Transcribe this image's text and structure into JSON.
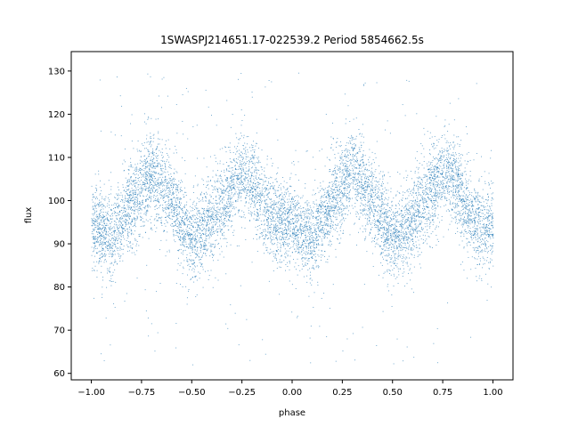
{
  "chart_data": {
    "type": "scatter",
    "title": "1SWASPJ214651.17-022539.2 Period 5854662.5s",
    "xlabel": "phase",
    "ylabel": "flux",
    "xlim": [
      -1.1,
      1.1
    ],
    "ylim": [
      58.5,
      134.5
    ],
    "xticks": [
      -1.0,
      -0.75,
      -0.5,
      -0.25,
      0.0,
      0.25,
      0.5,
      0.75,
      1.0
    ],
    "xtick_labels": [
      "−1.00",
      "−0.75",
      "−0.50",
      "−0.25",
      "0.00",
      "0.25",
      "0.50",
      "0.75",
      "1.00"
    ],
    "yticks": [
      60,
      70,
      80,
      90,
      100,
      110,
      120,
      130
    ],
    "ytick_labels": [
      "60",
      "70",
      "80",
      "90",
      "100",
      "110",
      "120",
      "130"
    ],
    "grid": false,
    "marker_color": "#1f77b4",
    "series": [
      {
        "phase_curve": [
          [
            0.0,
            95
          ],
          [
            0.05,
            93
          ],
          [
            0.1,
            91
          ],
          [
            0.15,
            96
          ],
          [
            0.2,
            100
          ],
          [
            0.25,
            103
          ],
          [
            0.3,
            107
          ],
          [
            0.35,
            104
          ],
          [
            0.4,
            100
          ],
          [
            0.45,
            95
          ],
          [
            0.5,
            91
          ],
          [
            0.55,
            93
          ],
          [
            0.6,
            96
          ],
          [
            0.65,
            99
          ],
          [
            0.7,
            103
          ],
          [
            0.75,
            107
          ],
          [
            0.8,
            105
          ],
          [
            0.85,
            100
          ],
          [
            0.9,
            96
          ],
          [
            0.95,
            94
          ],
          [
            1.0,
            95
          ]
        ],
        "scatter_sd": 4.5,
        "outlier_range": [
          62,
          130
        ]
      }
    ]
  }
}
